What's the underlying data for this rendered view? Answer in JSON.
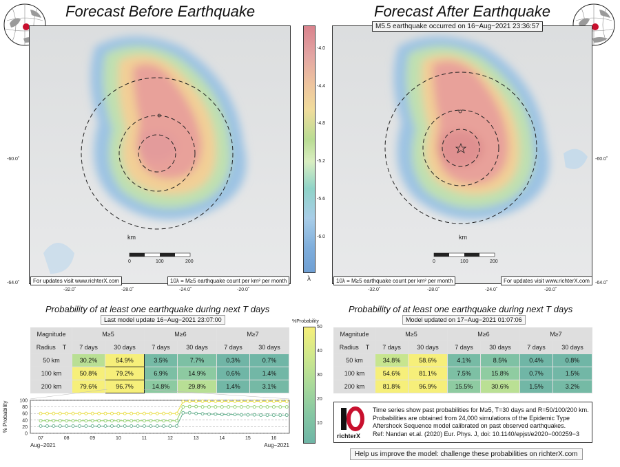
{
  "left_panel": {
    "title": "Forecast Before Earthquake",
    "map_left_note": "For updates visit www.richterX.com",
    "map_right_note": "10λ = M≥5 earthquake count per km² per month",
    "lat_labels": [
      "-60.0˚",
      "-64.0˚"
    ],
    "lon_labels": [
      "-32.0˚",
      "-28.0˚",
      "-24.0˚",
      "-20.0˚"
    ],
    "scale_unit": "km",
    "scale_ticks": [
      "0",
      "100",
      "200"
    ],
    "sub_title": "Probability of at least one earthquake during next T days",
    "update_text": "Last model update 16−Aug−2021 23:07:00"
  },
  "right_panel": {
    "title": "Forecast After Earthquake",
    "eq_note": "M5.5 earthquake occurred on 16−Aug−2021 23:36:57",
    "map_left_note": "10λ = M≥5 earthquake count per km² per month",
    "map_right_note": "For updates visit www.richterX.com",
    "lat_labels": [
      "-60.0˚",
      "-64.0˚"
    ],
    "lon_labels": [
      "-32.0˚",
      "-28.0˚",
      "-24.0˚",
      "-20.0˚"
    ],
    "scale_unit": "km",
    "scale_ticks": [
      "0",
      "100",
      "200"
    ],
    "sub_title": "Probability of at least one earthquake during next T days",
    "update_text": "Model updated on 17−Aug−2021 01:07:06",
    "legend_lines": [
      "Time series show past probabilities for M≥5, T=30 days and R=50/100/200 km.",
      "Probabilities are obtained from 24,000 simulations of the Epidemic Type",
      "Aftershock Sequence model calibrated on past observed earthquakes.",
      "Ref: Nandan et.al. (2020) Eur. Phys. J, doi: 10.1140/epjst/e2020−000259−3"
    ],
    "logo_text": "richterX",
    "help_text": "Help us improve the model: challenge these probabilities on richterX.com"
  },
  "colorbar": {
    "ticks": [
      "-4.0",
      "-4.4",
      "-4.8",
      "-5.2",
      "-5.6",
      "-6.0"
    ],
    "symbol": "λ",
    "label_left_pre": "10",
    "label_left_sup": "λ"
  },
  "prob_colorbar": {
    "title": "%Probability",
    "ticks": [
      "50",
      "40",
      "30",
      "20",
      "10"
    ]
  },
  "table_headers": {
    "magnitude": "Magnitude",
    "radius": "Radius",
    "t": "T",
    "mags": [
      "M≥5",
      "M≥6",
      "M≥7"
    ],
    "periods": [
      "7 days",
      "30 days",
      "7 days",
      "30 days",
      "7 days",
      "30 days"
    ]
  },
  "chart_data": [
    {
      "type": "table",
      "title": "Probability of at least one earthquake during next T days (before)",
      "rows": [
        {
          "radius": "50 km",
          "values": [
            "30.2%",
            "54.9%",
            "3.5%",
            "7.7%",
            "0.3%",
            "0.7%"
          ]
        },
        {
          "radius": "100 km",
          "values": [
            "50.8%",
            "79.2%",
            "6.9%",
            "14.9%",
            "0.6%",
            "1.4%"
          ]
        },
        {
          "radius": "200 km",
          "values": [
            "79.6%",
            "96.7%",
            "14.8%",
            "29.8%",
            "1.4%",
            "3.1%"
          ]
        }
      ]
    },
    {
      "type": "table",
      "title": "Probability of at least one earthquake during next T days (after)",
      "rows": [
        {
          "radius": "50 km",
          "values": [
            "34.8%",
            "58.6%",
            "4.1%",
            "8.5%",
            "0.4%",
            "0.8%"
          ]
        },
        {
          "radius": "100 km",
          "values": [
            "54.6%",
            "81.1%",
            "7.5%",
            "15.8%",
            "0.7%",
            "1.5%"
          ]
        },
        {
          "radius": "200 km",
          "values": [
            "81.8%",
            "96.9%",
            "15.5%",
            "30.6%",
            "1.5%",
            "3.2%"
          ]
        }
      ]
    },
    {
      "type": "line",
      "ylabel": "% Probability",
      "ylim": [
        0,
        100
      ],
      "yticks": [
        "100",
        "80",
        "60",
        "40",
        "20",
        "0"
      ],
      "x_ticks": [
        "07",
        "08",
        "09",
        "10",
        "11",
        "12",
        "13",
        "14",
        "15",
        "16"
      ],
      "x_start_label": "Aug−2021",
      "x_end_label": "Aug−2021",
      "x": [
        7.0,
        7.25,
        7.5,
        7.75,
        8.0,
        8.25,
        8.5,
        8.75,
        9.0,
        9.25,
        9.5,
        9.75,
        10.0,
        10.25,
        10.5,
        10.75,
        11.0,
        11.25,
        11.5,
        11.75,
        12.0,
        12.25,
        12.5,
        12.75,
        13.0,
        13.25,
        13.5,
        13.75,
        14.0,
        14.25,
        14.5,
        14.75,
        15.0,
        15.25,
        15.5,
        15.75,
        16.0,
        16.25,
        16.5
      ],
      "series": [
        {
          "values": [
            60,
            60,
            60,
            60,
            60,
            60,
            60,
            60,
            60,
            60,
            60,
            60,
            60,
            60,
            60,
            60,
            60,
            60,
            60,
            60,
            60,
            60,
            96,
            97,
            97,
            97,
            97,
            97,
            97,
            97,
            97,
            97,
            97,
            97,
            97,
            97,
            97,
            97,
            97
          ],
          "color": "#e8dc3a"
        },
        {
          "values": [
            38,
            38,
            38,
            38,
            38,
            38,
            38,
            38,
            38,
            38,
            38,
            38,
            38,
            38,
            38,
            38,
            38,
            38,
            38,
            38,
            38,
            38,
            80,
            81,
            81,
            80,
            80,
            80,
            80,
            80,
            80,
            80,
            80,
            80,
            80,
            80,
            80,
            80,
            80
          ],
          "color": "#8fcf6a"
        },
        {
          "values": [
            22,
            22,
            22,
            22,
            22,
            22,
            22,
            22,
            22,
            22,
            22,
            22,
            22,
            22,
            22,
            22,
            22,
            22,
            22,
            22,
            22,
            22,
            62,
            62,
            60,
            59,
            58,
            58,
            57,
            57,
            57,
            56,
            56,
            56,
            55,
            55,
            55,
            55,
            55
          ],
          "color": "#5fae8a"
        }
      ]
    }
  ]
}
